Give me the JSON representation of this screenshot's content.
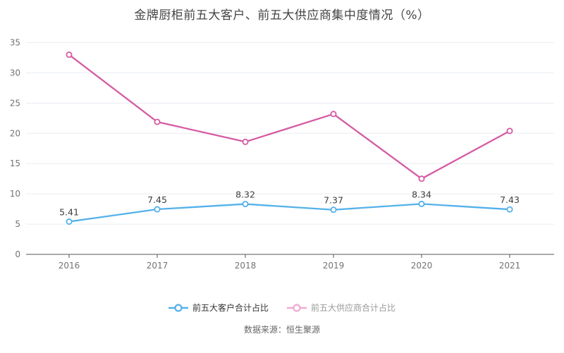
{
  "page": {
    "title": "金牌厨柜前五大客户、前五大供应商集中度情况（%）"
  },
  "footer": {
    "source_text": "数据来源：恒生聚源"
  },
  "chart_data": {
    "type": "line",
    "title": "金牌厨柜前五大客户、前五大供应商集中度情况（%）",
    "categories": [
      "2016",
      "2017",
      "2018",
      "2019",
      "2020",
      "2021"
    ],
    "series": [
      {
        "id": "customer",
        "name": "前五大客户合计占比",
        "values": [
          5.41,
          7.45,
          8.32,
          7.37,
          8.34,
          7.43
        ],
        "labels": [
          "5.41",
          "7.45",
          "8.32",
          "7.37",
          "8.34",
          "7.43"
        ],
        "show_labels": true,
        "color": "#54b1ea",
        "legend_color": "#54b1ea",
        "legend_text_color": "#333333"
      },
      {
        "id": "supplier",
        "name": "前五大供应商合计占比",
        "values": [
          33.0,
          21.9,
          18.6,
          23.2,
          12.5,
          20.4
        ],
        "labels": [],
        "show_labels": false,
        "color": "#d55ba3",
        "legend_color": "#efaad2",
        "legend_text_color": "#999999"
      }
    ],
    "ylim": [
      0,
      35
    ],
    "ytick_step": 5,
    "xlabel": "",
    "ylabel": "",
    "grid": true,
    "legend_position": "bottom",
    "colors": {
      "grid": "#e7edf4",
      "axis_line": "#555555",
      "axis_label": "#737373",
      "value_label": "#3d3d3d",
      "background": "#ffffff"
    }
  }
}
